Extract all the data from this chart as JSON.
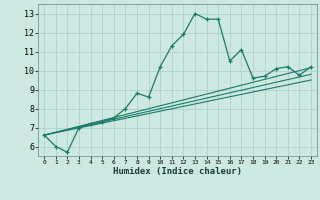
{
  "xlabel": "Humidex (Indice chaleur)",
  "ylabel": "",
  "background_color": "#cce8e0",
  "grid_color": "#aacccc",
  "line_color": "#1a7a6a",
  "xlim": [
    -0.5,
    23.5
  ],
  "ylim": [
    5.5,
    13.5
  ],
  "xticks": [
    0,
    1,
    2,
    3,
    4,
    5,
    6,
    7,
    8,
    9,
    10,
    11,
    12,
    13,
    14,
    15,
    16,
    17,
    18,
    19,
    20,
    21,
    22,
    23
  ],
  "yticks": [
    6,
    7,
    8,
    9,
    10,
    11,
    12,
    13
  ],
  "series1_x": [
    0,
    1,
    2,
    3,
    4,
    5,
    6,
    7,
    8,
    9,
    10,
    11,
    12,
    13,
    14,
    15,
    16,
    17,
    18,
    19,
    20,
    21,
    22,
    23
  ],
  "series1_y": [
    6.6,
    6.0,
    5.7,
    7.0,
    7.2,
    7.3,
    7.5,
    8.0,
    8.8,
    8.6,
    10.2,
    11.3,
    11.9,
    13.0,
    12.7,
    12.7,
    10.5,
    11.1,
    9.6,
    9.7,
    10.1,
    10.2,
    9.75,
    10.2
  ],
  "series2_x": [
    0,
    23
  ],
  "series2_y": [
    6.6,
    10.15
  ],
  "series3_x": [
    0,
    23
  ],
  "series3_y": [
    6.6,
    9.5
  ],
  "series4_x": [
    0,
    23
  ],
  "series4_y": [
    6.6,
    9.8
  ]
}
